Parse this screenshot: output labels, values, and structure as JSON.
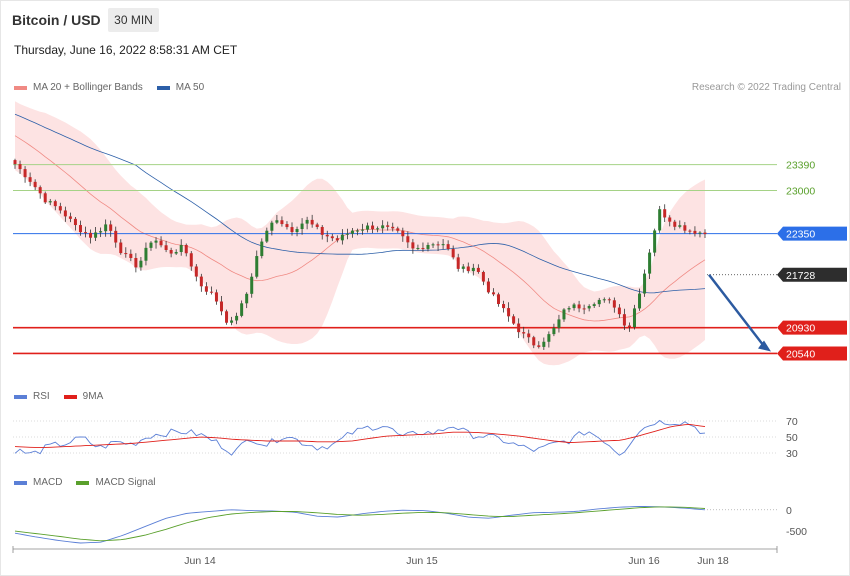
{
  "header": {
    "title": "Bitcoin / USD",
    "timeframe": "30 MIN",
    "datetime": "Thursday, June 16, 2022 8:58:31 AM CET",
    "credit": "Research © 2022 Trading Central"
  },
  "legends": {
    "price": [
      {
        "label": "MA 20 + Bollinger Bands",
        "color": "#f08a84"
      },
      {
        "label": "MA 50",
        "color": "#2c5fa8"
      }
    ],
    "rsi": [
      {
        "label": "RSI",
        "color": "#5b7fd6"
      },
      {
        "label": "9MA",
        "color": "#e0201b"
      }
    ],
    "macd": [
      {
        "label": "MACD",
        "color": "#5b7fd6"
      },
      {
        "label": "MACD Signal",
        "color": "#5aa02c"
      }
    ]
  },
  "colors": {
    "bull": "#2e7d32",
    "bear": "#c62828",
    "band_fill": "#fde3e3",
    "ma20": "#f08a84",
    "ma50": "#2c5fa8",
    "green_level": "#a5d286",
    "blue_level": "#2c6fe8",
    "red_level": "#e0201b",
    "arrow": "#2c5aa0"
  },
  "chart_data": [
    {
      "type": "candlestick",
      "title": "Bitcoin / USD",
      "x_ticks": [
        "Jun 14",
        "Jun 15",
        "Jun 16",
        "Jun 18"
      ],
      "price_range": [
        20200,
        24200
      ],
      "ma20_bollinger": "MA 20 + Bollinger Bands",
      "ma50": "MA 50",
      "candles_sampled_close": [
        23400,
        23150,
        22850,
        22700,
        22450,
        22300,
        22500,
        22050,
        21850,
        22300,
        22050,
        22150,
        21600,
        21400,
        20950,
        21350,
        22200,
        22600,
        22400,
        22550,
        22350,
        22250,
        22400,
        22450,
        22450,
        22350,
        22100,
        22200,
        22200,
        21800,
        21850,
        21450,
        21150,
        20850,
        20650,
        20850,
        21250,
        21250,
        21350,
        21300,
        20900,
        21700,
        22700,
        22500,
        22400,
        22350
      ],
      "levels": [
        {
          "label": "23390",
          "value": 23390,
          "kind": "resistance"
        },
        {
          "label": "23000",
          "value": 23000,
          "kind": "resistance"
        },
        {
          "label": "22350",
          "value": 22350,
          "kind": "pivot"
        },
        {
          "label": "21728",
          "value": 21728,
          "kind": "last_price"
        },
        {
          "label": "20930",
          "value": 20930,
          "kind": "support"
        },
        {
          "label": "20540",
          "value": 20540,
          "kind": "support"
        }
      ],
      "forecast_arrow": {
        "from": 21728,
        "to": 20540
      }
    },
    {
      "type": "line",
      "title": "RSI",
      "y_ticks": [
        "70",
        "50",
        "30"
      ],
      "series": [
        {
          "name": "RSI",
          "values": [
            34,
            28,
            38,
            42,
            49,
            36,
            44,
            41,
            52,
            55,
            57,
            53,
            43,
            30,
            49,
            40,
            53,
            44,
            37,
            41,
            55,
            62,
            65,
            49,
            56,
            55,
            65,
            53,
            51,
            46,
            38,
            33,
            41,
            46,
            58,
            46,
            28,
            57,
            69,
            69,
            68,
            54
          ]
        },
        {
          "name": "9MA",
          "values": [
            38,
            37,
            37,
            38,
            39,
            40,
            41,
            42,
            44,
            46,
            48,
            50,
            49,
            47,
            46,
            45,
            45,
            45,
            44,
            44,
            45,
            48,
            51,
            52,
            53,
            54,
            56,
            56,
            55,
            53,
            51,
            48,
            45,
            43,
            44,
            45,
            46,
            51,
            57,
            63,
            66,
            63
          ]
        }
      ]
    },
    {
      "type": "line",
      "title": "MACD",
      "y_ticks": [
        "0",
        "-500"
      ],
      "series": [
        {
          "name": "MACD",
          "values": [
            -550,
            -640,
            -720,
            -780,
            -760,
            -600,
            -400,
            -200,
            -80,
            -40,
            0,
            -20,
            -30,
            -60,
            -150,
            -170,
            -100,
            -40,
            -10,
            -20,
            -80,
            -170,
            -200,
            -130,
            -70,
            -60,
            -40,
            20,
            60,
            80,
            70,
            40,
            0
          ]
        },
        {
          "name": "MACD Signal",
          "values": [
            -500,
            -560,
            -620,
            -690,
            -730,
            -700,
            -600,
            -460,
            -300,
            -180,
            -100,
            -60,
            -40,
            -40,
            -70,
            -110,
            -130,
            -110,
            -80,
            -60,
            -70,
            -110,
            -150,
            -160,
            -130,
            -100,
            -70,
            -30,
            10,
            50,
            70,
            60,
            30
          ]
        }
      ]
    }
  ]
}
